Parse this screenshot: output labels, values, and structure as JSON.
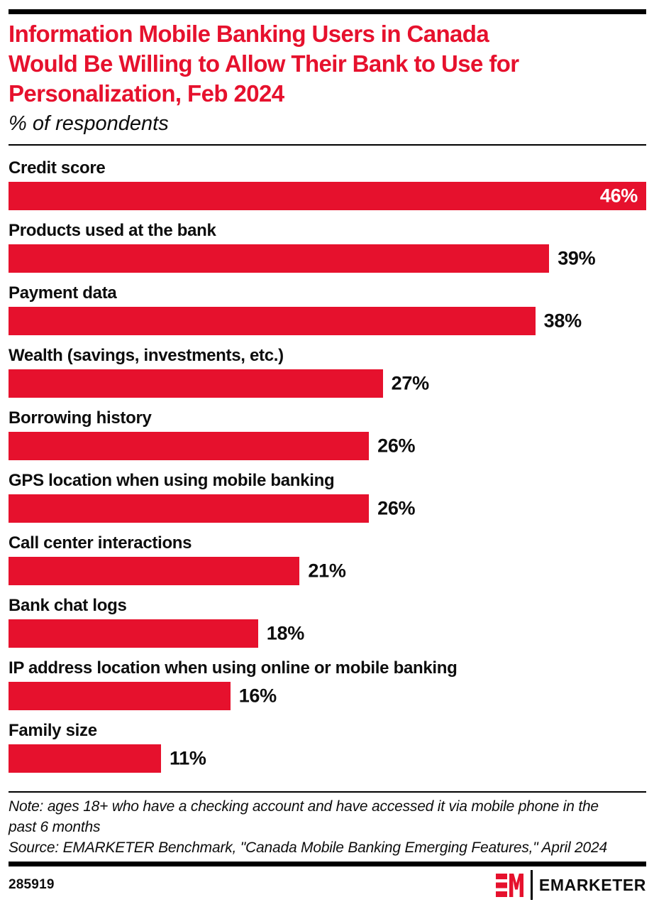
{
  "colors": {
    "accent_red": "#E6112D",
    "text_black": "#0D0D0D",
    "inside_value_label": "#FFFFFF"
  },
  "header": {
    "title_lines": [
      "Information Mobile Banking Users in Canada",
      "Would Be Willing to Allow Their Bank to Use for",
      "Personalization, Feb 2024"
    ],
    "subtitle": "% of respondents"
  },
  "chart_data": {
    "type": "bar",
    "orientation": "horizontal",
    "title": "Information Mobile Banking Users in Canada Would Be Willing to Allow Their Bank to Use for Personalization, Feb 2024",
    "subtitle": "% of respondents",
    "categories": [
      "Credit score",
      "Products used at the bank",
      "Payment data",
      "Wealth (savings, investments, etc.)",
      "Borrowing history",
      "GPS location when using mobile banking",
      "Call center interactions",
      "Bank chat logs",
      "IP address location when using online or mobile banking",
      "Family size"
    ],
    "values": [
      46,
      39,
      38,
      27,
      26,
      26,
      21,
      18,
      16,
      11
    ],
    "value_labels": [
      "46%",
      "39%",
      "38%",
      "27%",
      "26%",
      "26%",
      "21%",
      "18%",
      "16%",
      "11%"
    ],
    "value_suffix": "%",
    "xlim": [
      0,
      46
    ],
    "bar_color": "#E6112D",
    "grid": false,
    "legend": false,
    "value_label_position": "outside-except-max-bar-inside"
  },
  "footer": {
    "note": "Note: ages 18+ who have a checking account and have accessed it via mobile phone in the past 6 months",
    "source": "Source: EMARKETER Benchmark, \"Canada Mobile Banking Emerging Features,\" April 2024",
    "chart_id": "285919",
    "brand_wordmark": "EMARKETER"
  }
}
